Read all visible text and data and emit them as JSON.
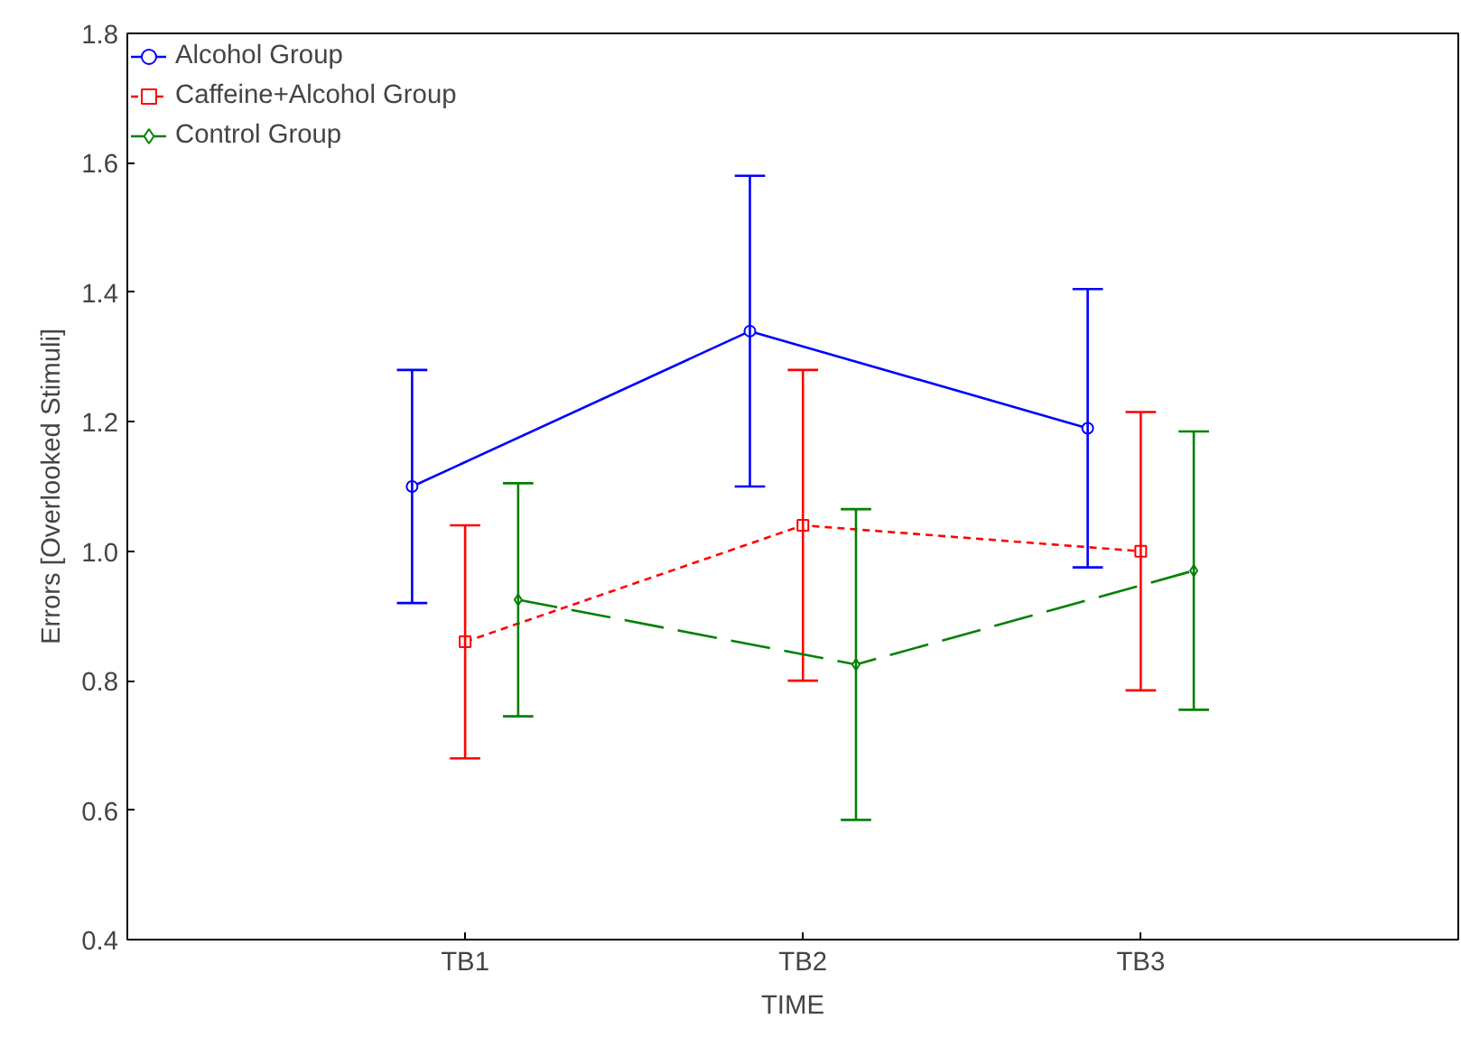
{
  "chart_data": {
    "type": "line",
    "xlabel": "TIME",
    "ylabel": "Errors [Overlooked Stimuli]",
    "categories": [
      "TB1",
      "TB2",
      "TB3"
    ],
    "ylim": [
      0.4,
      1.8
    ],
    "yticks": [
      {
        "value": 0.4,
        "label": "0.4"
      },
      {
        "value": 0.6,
        "label": "0.6"
      },
      {
        "value": 0.8,
        "label": "0.8"
      },
      {
        "value": 1.0,
        "label": "1.0"
      },
      {
        "value": 1.2,
        "label": "1.2"
      },
      {
        "value": 1.4,
        "label": "1.4"
      },
      {
        "value": 1.6,
        "label": "1.6"
      },
      {
        "value": 1.8,
        "label": "1.8"
      }
    ],
    "grid": false,
    "legend": "top left",
    "series": [
      {
        "name": "Alcohol Group",
        "color": "#0000ff",
        "values": [
          1.1,
          1.34,
          1.19
        ],
        "errors": [
          0.18,
          0.24,
          0.215
        ],
        "marker": "circle",
        "line_style": "solid"
      },
      {
        "name": "Caffeine+Alcohol Group",
        "color": "#ff0000",
        "values": [
          0.86,
          1.04,
          1.0
        ],
        "errors": [
          0.18,
          0.24,
          0.215
        ],
        "marker": "square",
        "line_style": "dashed"
      },
      {
        "name": "Control Group",
        "color": "#008000",
        "values": [
          0.925,
          0.825,
          0.97
        ],
        "errors": [
          0.18,
          0.24,
          0.215
        ],
        "marker": "diamond",
        "line_style": "longdash"
      }
    ]
  }
}
